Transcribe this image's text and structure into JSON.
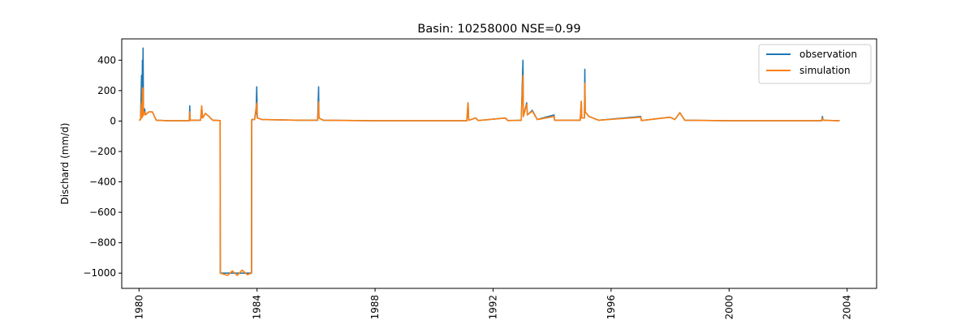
{
  "chart_data": {
    "type": "line",
    "title": "Basin: 10258000 NSE=0.99",
    "xlabel": "",
    "ylabel": "Dischard (mm/d)",
    "xlim": [
      "1979-06-01",
      "2004-12-31"
    ],
    "ylim": [
      -1100,
      540
    ],
    "x_ticks": [
      "1980",
      "1984",
      "1988",
      "1992",
      "1996",
      "2000",
      "2004"
    ],
    "y_ticks": [
      400,
      200,
      0,
      -200,
      -400,
      -600,
      -800,
      -1000
    ],
    "y_tick_labels": [
      "400",
      "200",
      "0",
      "−200",
      "−400",
      "−600",
      "−800",
      "−1000"
    ],
    "legend": {
      "position": "top-right",
      "entries": [
        "observation",
        "simulation"
      ]
    },
    "grid": false,
    "colors": {
      "observation": "#1f77b4",
      "simulation": "#ff7f0e"
    },
    "series": [
      {
        "name": "observation",
        "points": [
          [
            "1980-01-01",
            5
          ],
          [
            "1980-01-20",
            10
          ],
          [
            "1980-02-01",
            300
          ],
          [
            "1980-02-05",
            20
          ],
          [
            "1980-02-12",
            400
          ],
          [
            "1980-02-15",
            30
          ],
          [
            "1980-02-20",
            480
          ],
          [
            "1980-02-25",
            40
          ],
          [
            "1980-03-10",
            80
          ],
          [
            "1980-03-20",
            40
          ],
          [
            "1980-05-01",
            60
          ],
          [
            "1980-06-15",
            60
          ],
          [
            "1980-08-01",
            5
          ],
          [
            "1981-01-01",
            2
          ],
          [
            "1981-09-15",
            2
          ],
          [
            "1981-09-20",
            100
          ],
          [
            "1981-09-25",
            5
          ],
          [
            "1982-02-01",
            5
          ],
          [
            "1982-02-15",
            95
          ],
          [
            "1982-02-25",
            20
          ],
          [
            "1982-04-01",
            50
          ],
          [
            "1982-05-15",
            30
          ],
          [
            "1982-07-01",
            5
          ],
          [
            "1982-10-01",
            3
          ],
          [
            "1982-10-03",
            -1000
          ],
          [
            "1983-10-25",
            -1000
          ],
          [
            "1983-10-27",
            10
          ],
          [
            "1983-12-01",
            10
          ],
          [
            "1983-12-20",
            60
          ],
          [
            "1983-12-28",
            225
          ],
          [
            "1984-01-04",
            20
          ],
          [
            "1984-03-01",
            10
          ],
          [
            "1985-06-01",
            5
          ],
          [
            "1986-01-20",
            5
          ],
          [
            "1986-02-01",
            225
          ],
          [
            "1986-02-05",
            20
          ],
          [
            "1986-04-01",
            5
          ],
          [
            "1988-01-01",
            2
          ],
          [
            "1990-01-01",
            2
          ],
          [
            "1991-02-10",
            2
          ],
          [
            "1991-02-25",
            120
          ],
          [
            "1991-03-05",
            5
          ],
          [
            "1991-06-01",
            20
          ],
          [
            "1991-07-01",
            3
          ],
          [
            "1992-06-01",
            20
          ],
          [
            "1992-07-01",
            3
          ],
          [
            "1992-12-15",
            5
          ],
          [
            "1993-01-05",
            400
          ],
          [
            "1993-01-10",
            30
          ],
          [
            "1993-02-20",
            120
          ],
          [
            "1993-03-01",
            40
          ],
          [
            "1993-05-01",
            70
          ],
          [
            "1993-07-01",
            10
          ],
          [
            "1994-01-25",
            40
          ],
          [
            "1994-02-01",
            5
          ],
          [
            "1994-12-15",
            5
          ],
          [
            "1994-12-28",
            130
          ],
          [
            "1995-01-03",
            20
          ],
          [
            "1995-02-05",
            20
          ],
          [
            "1995-02-10",
            340
          ],
          [
            "1995-02-15",
            60
          ],
          [
            "1995-04-01",
            30
          ],
          [
            "1995-08-01",
            5
          ],
          [
            "1997-01-01",
            30
          ],
          [
            "1997-01-10",
            3
          ],
          [
            "1998-01-01",
            25
          ],
          [
            "1998-03-01",
            10
          ],
          [
            "1998-05-01",
            55
          ],
          [
            "1998-07-01",
            5
          ],
          [
            "2000-01-01",
            2
          ],
          [
            "2003-02-20",
            2
          ],
          [
            "2003-03-01",
            30
          ],
          [
            "2003-03-10",
            5
          ],
          [
            "2003-10-01",
            2
          ]
        ]
      },
      {
        "name": "simulation",
        "points": [
          [
            "1980-01-01",
            5
          ],
          [
            "1980-01-20",
            10
          ],
          [
            "1980-02-01",
            120
          ],
          [
            "1980-02-05",
            20
          ],
          [
            "1980-02-12",
            220
          ],
          [
            "1980-02-15",
            30
          ],
          [
            "1980-02-20",
            210
          ],
          [
            "1980-02-25",
            40
          ],
          [
            "1980-03-10",
            60
          ],
          [
            "1980-03-20",
            40
          ],
          [
            "1980-05-01",
            60
          ],
          [
            "1980-06-15",
            60
          ],
          [
            "1980-08-01",
            5
          ],
          [
            "1981-01-01",
            2
          ],
          [
            "1981-09-15",
            2
          ],
          [
            "1981-09-20",
            60
          ],
          [
            "1981-09-25",
            5
          ],
          [
            "1982-02-01",
            5
          ],
          [
            "1982-02-15",
            100
          ],
          [
            "1982-02-25",
            20
          ],
          [
            "1982-04-01",
            50
          ],
          [
            "1982-05-15",
            30
          ],
          [
            "1982-07-01",
            5
          ],
          [
            "1982-10-01",
            3
          ],
          [
            "1982-10-03",
            -1000
          ],
          [
            "1983-01-01",
            -1015
          ],
          [
            "1983-03-01",
            -985
          ],
          [
            "1983-05-01",
            -1015
          ],
          [
            "1983-07-01",
            -980
          ],
          [
            "1983-09-01",
            -1010
          ],
          [
            "1983-10-25",
            -1000
          ],
          [
            "1983-10-27",
            10
          ],
          [
            "1983-12-01",
            10
          ],
          [
            "1983-12-28",
            120
          ],
          [
            "1984-01-04",
            20
          ],
          [
            "1984-03-01",
            10
          ],
          [
            "1985-06-01",
            5
          ],
          [
            "1986-01-20",
            5
          ],
          [
            "1986-02-01",
            125
          ],
          [
            "1986-02-05",
            20
          ],
          [
            "1986-04-01",
            5
          ],
          [
            "1988-01-01",
            2
          ],
          [
            "1990-01-01",
            2
          ],
          [
            "1991-02-10",
            2
          ],
          [
            "1991-02-25",
            120
          ],
          [
            "1991-03-05",
            5
          ],
          [
            "1991-06-01",
            20
          ],
          [
            "1991-07-01",
            3
          ],
          [
            "1992-06-01",
            20
          ],
          [
            "1992-07-01",
            3
          ],
          [
            "1992-12-15",
            5
          ],
          [
            "1993-01-05",
            300
          ],
          [
            "1993-01-10",
            30
          ],
          [
            "1993-02-20",
            110
          ],
          [
            "1993-03-01",
            40
          ],
          [
            "1993-05-01",
            65
          ],
          [
            "1993-07-01",
            10
          ],
          [
            "1994-01-25",
            30
          ],
          [
            "1994-02-01",
            5
          ],
          [
            "1994-12-15",
            5
          ],
          [
            "1994-12-28",
            130
          ],
          [
            "1995-01-03",
            20
          ],
          [
            "1995-02-05",
            20
          ],
          [
            "1995-02-10",
            250
          ],
          [
            "1995-02-15",
            60
          ],
          [
            "1995-04-01",
            30
          ],
          [
            "1995-08-01",
            5
          ],
          [
            "1997-01-01",
            25
          ],
          [
            "1997-01-10",
            3
          ],
          [
            "1998-01-01",
            25
          ],
          [
            "1998-03-01",
            10
          ],
          [
            "1998-05-01",
            55
          ],
          [
            "1998-07-01",
            5
          ],
          [
            "2000-01-01",
            2
          ],
          [
            "2003-02-20",
            2
          ],
          [
            "2003-03-01",
            20
          ],
          [
            "2003-03-10",
            5
          ],
          [
            "2003-10-01",
            2
          ]
        ]
      }
    ]
  }
}
